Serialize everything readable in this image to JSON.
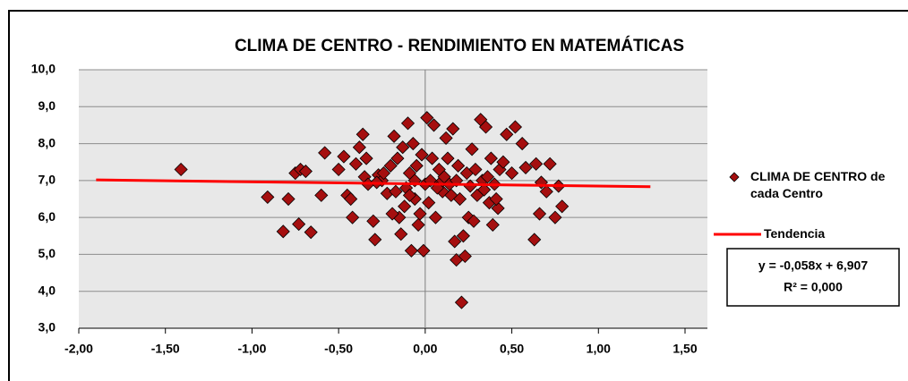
{
  "chart_data": {
    "type": "scatter",
    "title": "CLIMA DE CENTRO - RENDIMIENTO  EN MATEMÁTICAS",
    "xlim": [
      -2,
      1.5
    ],
    "ylim": [
      3,
      10
    ],
    "xticks": [
      {
        "value": -2,
        "label": "-2,00"
      },
      {
        "value": -1.5,
        "label": "-1,50"
      },
      {
        "value": -1,
        "label": "-1,00"
      },
      {
        "value": -0.5,
        "label": "-0,50"
      },
      {
        "value": 0,
        "label": "0,00"
      },
      {
        "value": 0.5,
        "label": "0,50"
      },
      {
        "value": 1,
        "label": "1,00"
      },
      {
        "value": 1.5,
        "label": "1,50"
      }
    ],
    "yticks": [
      {
        "value": 3,
        "label": "3,0"
      },
      {
        "value": 4,
        "label": "4,0"
      },
      {
        "value": 5,
        "label": "5,0"
      },
      {
        "value": 6,
        "label": "6,0"
      },
      {
        "value": 7,
        "label": "7,0"
      },
      {
        "value": 8,
        "label": "8,0"
      },
      {
        "value": 9,
        "label": "9,0"
      },
      {
        "value": 10,
        "label": "10,0"
      }
    ],
    "grid": true,
    "series": [
      {
        "name": "CLIMA DE CENTRO de cada Centro",
        "color": "#a50f0f",
        "x": [
          -1.41,
          -0.91,
          -0.82,
          -0.79,
          -0.75,
          -0.73,
          -0.72,
          -0.69,
          -0.66,
          -0.6,
          -0.58,
          -0.5,
          -0.47,
          -0.45,
          -0.43,
          -0.42,
          -0.4,
          -0.38,
          -0.36,
          -0.35,
          -0.34,
          -0.33,
          -0.3,
          -0.29,
          -0.27,
          -0.25,
          -0.22,
          -0.2,
          -0.18,
          -0.17,
          -0.16,
          -0.15,
          -0.14,
          -0.13,
          -0.12,
          -0.11,
          -0.1,
          -0.09,
          -0.08,
          -0.07,
          -0.06,
          -0.05,
          -0.04,
          -0.03,
          -0.02,
          -0.01,
          0.0,
          0.01,
          0.02,
          0.03,
          0.05,
          0.06,
          0.08,
          0.1,
          0.12,
          0.13,
          0.15,
          0.16,
          0.17,
          0.18,
          0.19,
          0.2,
          0.21,
          0.22,
          0.23,
          0.24,
          0.25,
          0.27,
          0.28,
          0.3,
          0.32,
          0.33,
          0.35,
          0.37,
          0.38,
          0.39,
          0.4,
          0.42,
          0.43,
          0.45,
          0.47,
          0.5,
          0.52,
          0.56,
          0.58,
          0.63,
          0.64,
          0.66,
          0.67,
          0.7,
          0.72,
          0.75,
          0.77,
          0.79,
          -0.24,
          -0.19,
          -0.06,
          0.04,
          0.09,
          0.11,
          0.14,
          0.18,
          0.26,
          0.29,
          0.34,
          0.36,
          0.41,
          -0.28,
          -0.09,
          0.07
        ],
        "values": [
          7.3,
          6.55,
          5.62,
          6.5,
          7.2,
          5.82,
          7.3,
          7.25,
          5.6,
          6.6,
          7.75,
          7.3,
          7.65,
          6.6,
          6.5,
          6.0,
          7.45,
          7.9,
          8.25,
          7.1,
          7.6,
          6.9,
          5.9,
          5.4,
          7.15,
          7.0,
          6.65,
          7.4,
          8.2,
          6.7,
          7.6,
          6.0,
          5.55,
          7.9,
          6.3,
          6.8,
          8.55,
          7.2,
          5.1,
          8.0,
          6.5,
          7.4,
          5.8,
          6.1,
          7.7,
          5.1,
          6.9,
          8.7,
          6.4,
          7.0,
          8.5,
          6.0,
          7.3,
          6.7,
          8.15,
          7.6,
          6.6,
          8.4,
          5.35,
          4.85,
          7.4,
          6.5,
          3.7,
          5.5,
          4.95,
          7.2,
          6.0,
          7.85,
          5.9,
          6.6,
          8.65,
          7.0,
          8.45,
          6.4,
          7.6,
          5.8,
          6.9,
          6.25,
          7.3,
          7.5,
          8.25,
          7.2,
          8.45,
          8.0,
          7.35,
          5.4,
          7.45,
          6.1,
          6.95,
          6.7,
          7.45,
          6.0,
          6.85,
          6.3,
          7.2,
          6.1,
          7.0,
          7.6,
          6.95,
          7.1,
          6.9,
          7.0,
          6.85,
          7.3,
          6.75,
          7.1,
          6.5,
          6.95,
          6.6,
          6.8
        ]
      },
      {
        "name": "Tendencia",
        "color": "#ff0000",
        "x": [
          -1.9,
          1.3
        ],
        "values": [
          7.017,
          6.832
        ]
      }
    ],
    "annotations": [
      "y = -0,058x + 6,907",
      "R² = 0,000"
    ]
  }
}
